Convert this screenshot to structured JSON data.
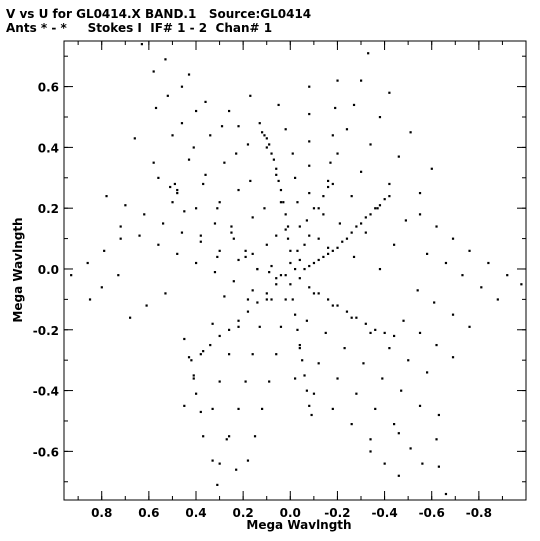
{
  "header": {
    "title_line1": "V vs U for GL0414.X BAND.1   Source:GL0414",
    "title_line2": "Ants * - *     Stokes I  IF# 1 - 2  Chan# 1"
  },
  "chart_data": {
    "type": "scatter",
    "title": "V vs U for GL0414.X BAND.1   Source:GL0414",
    "subtitle": "Ants * - *     Stokes I  IF# 1 - 2  Chan# 1",
    "xlabel": "Mega Wavlngth",
    "ylabel": "Mega Wavlngth",
    "xlim": [
      0.96,
      -1.0
    ],
    "ylim": [
      -0.76,
      0.75
    ],
    "x_reversed": true,
    "grid": false,
    "x_ticks": [
      0.8,
      0.6,
      0.4,
      0.2,
      0.0,
      -0.2,
      -0.4,
      -0.6,
      -0.8
    ],
    "x_tick_labels": [
      "0.8",
      "0.6",
      "0.4",
      "0.2",
      "0.0",
      "-0.2",
      "-0.4",
      "-0.6",
      "-0.8"
    ],
    "y_ticks": [
      0.6,
      0.4,
      0.2,
      0.0,
      -0.2,
      -0.4,
      -0.6
    ],
    "y_tick_labels": [
      "0.6",
      "0.4",
      "0.2",
      "0.0",
      "-0.2",
      "-0.4",
      "-0.6"
    ],
    "series": [
      {
        "marker_color": "#000000",
        "points": [
          [
            0.63,
            0.74
          ],
          [
            0.58,
            0.65
          ],
          [
            0.52,
            0.57
          ],
          [
            0.46,
            0.48
          ],
          [
            0.41,
            0.4
          ],
          [
            0.36,
            0.31
          ],
          [
            0.3,
            0.22
          ],
          [
            0.25,
            0.14
          ],
          [
            0.19,
            0.06
          ],
          [
            0.14,
            0.0
          ],
          [
            0.09,
            -0.01
          ],
          [
            0.04,
            -0.02
          ],
          [
            0.53,
            0.69
          ],
          [
            0.46,
            0.6
          ],
          [
            0.4,
            0.52
          ],
          [
            0.34,
            0.44
          ],
          [
            0.28,
            0.35
          ],
          [
            0.22,
            0.26
          ],
          [
            0.16,
            0.17
          ],
          [
            0.1,
            0.08
          ],
          [
            0.43,
            0.64
          ],
          [
            0.36,
            0.55
          ],
          [
            0.29,
            0.47
          ],
          [
            0.23,
            0.38
          ],
          [
            0.17,
            0.29
          ],
          [
            0.11,
            0.2
          ],
          [
            0.06,
            0.11
          ],
          [
            0.57,
            0.53
          ],
          [
            0.5,
            0.44
          ],
          [
            0.43,
            0.36
          ],
          [
            0.37,
            0.28
          ],
          [
            0.31,
            0.2
          ],
          [
            0.25,
            0.12
          ],
          [
            0.19,
            0.04
          ],
          [
            0.66,
            0.43
          ],
          [
            0.58,
            0.35
          ],
          [
            0.51,
            0.27
          ],
          [
            0.45,
            0.19
          ],
          [
            0.38,
            0.11
          ],
          [
            0.31,
            0.04
          ],
          [
            0.05,
            0.54
          ],
          [
            0.02,
            0.46
          ],
          [
            -0.01,
            0.38
          ],
          [
            -0.02,
            0.3
          ],
          [
            -0.03,
            0.22
          ],
          [
            -0.04,
            0.14
          ],
          [
            -0.03,
            0.06
          ],
          [
            -0.02,
            0.0
          ],
          [
            -0.08,
            0.6
          ],
          [
            -0.08,
            0.51
          ],
          [
            -0.08,
            0.42
          ],
          [
            -0.08,
            0.34
          ],
          [
            -0.08,
            0.25
          ],
          [
            -0.07,
            0.16
          ],
          [
            -0.06,
            0.08
          ],
          [
            -0.2,
            0.62
          ],
          [
            -0.19,
            0.53
          ],
          [
            -0.18,
            0.44
          ],
          [
            -0.17,
            0.35
          ],
          [
            -0.16,
            0.27
          ],
          [
            -0.14,
            0.18
          ],
          [
            -0.12,
            0.1
          ],
          [
            0.17,
            0.57
          ],
          [
            0.13,
            0.48
          ],
          [
            0.1,
            0.4
          ],
          [
            0.06,
            0.31
          ],
          [
            0.04,
            0.22
          ],
          [
            0.02,
            0.13
          ],
          [
            0.12,
            0.45
          ],
          [
            0.11,
            0.44
          ],
          [
            0.1,
            0.43
          ],
          [
            0.09,
            0.41
          ],
          [
            0.08,
            0.38
          ],
          [
            0.07,
            0.36
          ],
          [
            0.06,
            0.33
          ],
          [
            0.05,
            0.29
          ],
          [
            0.04,
            0.26
          ],
          [
            0.03,
            0.22
          ],
          [
            0.02,
            0.18
          ],
          [
            0.01,
            0.14
          ],
          [
            0.01,
            0.1
          ],
          [
            0.0,
            0.06
          ],
          [
            0.0,
            0.02
          ],
          [
            -0.33,
            0.71
          ],
          [
            -0.3,
            0.62
          ],
          [
            -0.27,
            0.54
          ],
          [
            -0.24,
            0.46
          ],
          [
            -0.2,
            0.38
          ],
          [
            -0.16,
            0.29
          ],
          [
            -0.12,
            0.2
          ],
          [
            -0.08,
            0.11
          ],
          [
            -0.04,
            0.03
          ],
          [
            -0.42,
            0.58
          ],
          [
            -0.38,
            0.5
          ],
          [
            -0.34,
            0.41
          ],
          [
            -0.3,
            0.32
          ],
          [
            -0.26,
            0.24
          ],
          [
            -0.21,
            0.15
          ],
          [
            -0.16,
            0.07
          ],
          [
            -0.51,
            0.45
          ],
          [
            -0.46,
            0.37
          ],
          [
            -0.42,
            0.28
          ],
          [
            -0.37,
            0.2
          ],
          [
            -0.32,
            0.12
          ],
          [
            -0.27,
            0.04
          ],
          [
            -0.6,
            0.33
          ],
          [
            -0.55,
            0.25
          ],
          [
            -0.49,
            0.16
          ],
          [
            -0.44,
            0.08
          ],
          [
            -0.38,
            0.0
          ],
          [
            -0.42,
            0.24
          ],
          [
            -0.4,
            0.23
          ],
          [
            -0.38,
            0.21
          ],
          [
            -0.36,
            0.2
          ],
          [
            -0.34,
            0.18
          ],
          [
            -0.32,
            0.17
          ],
          [
            -0.3,
            0.15
          ],
          [
            -0.28,
            0.14
          ],
          [
            -0.26,
            0.12
          ],
          [
            -0.24,
            0.1
          ],
          [
            -0.22,
            0.09
          ],
          [
            -0.2,
            0.07
          ],
          [
            -0.18,
            0.06
          ],
          [
            -0.16,
            0.05
          ],
          [
            -0.14,
            0.04
          ],
          [
            -0.12,
            0.03
          ],
          [
            -0.1,
            0.02
          ],
          [
            -0.08,
            0.01
          ],
          [
            -0.06,
            0.0
          ],
          [
            -0.55,
            0.18
          ],
          [
            -0.62,
            0.14
          ],
          [
            -0.69,
            0.1
          ],
          [
            -0.76,
            0.06
          ],
          [
            -0.84,
            0.02
          ],
          [
            -0.92,
            -0.02
          ],
          [
            -0.98,
            -0.05
          ],
          [
            -0.58,
            0.05
          ],
          [
            -0.66,
            0.02
          ],
          [
            -0.73,
            -0.02
          ],
          [
            -0.81,
            -0.06
          ],
          [
            -0.88,
            -0.1
          ],
          [
            -0.54,
            -0.07
          ],
          [
            -0.61,
            -0.11
          ],
          [
            -0.69,
            -0.15
          ],
          [
            -0.76,
            -0.19
          ],
          [
            -0.48,
            -0.17
          ],
          [
            -0.55,
            -0.21
          ],
          [
            -0.62,
            -0.25
          ],
          [
            -0.69,
            -0.29
          ],
          [
            -0.04,
            -0.03
          ],
          [
            -0.08,
            -0.06
          ],
          [
            -0.12,
            -0.08
          ],
          [
            -0.16,
            -0.1
          ],
          [
            -0.2,
            -0.12
          ],
          [
            -0.24,
            -0.14
          ],
          [
            -0.28,
            -0.16
          ],
          [
            -0.32,
            -0.18
          ],
          [
            -0.36,
            -0.2
          ],
          [
            -0.4,
            -0.21
          ],
          [
            -0.44,
            -0.22
          ],
          [
            -0.1,
            -0.08
          ],
          [
            -0.18,
            -0.12
          ],
          [
            -0.26,
            -0.16
          ],
          [
            -0.34,
            -0.21
          ],
          [
            -0.42,
            -0.26
          ],
          [
            -0.5,
            -0.3
          ],
          [
            -0.58,
            -0.34
          ],
          [
            -0.07,
            -0.17
          ],
          [
            -0.15,
            -0.21
          ],
          [
            -0.23,
            -0.26
          ],
          [
            -0.31,
            -0.31
          ],
          [
            -0.39,
            -0.36
          ],
          [
            -0.47,
            -0.4
          ],
          [
            -0.55,
            -0.45
          ],
          [
            -0.04,
            -0.26
          ],
          [
            -0.12,
            -0.31
          ],
          [
            -0.2,
            -0.36
          ],
          [
            -0.28,
            -0.41
          ],
          [
            -0.36,
            -0.46
          ],
          [
            -0.44,
            -0.51
          ],
          [
            -0.02,
            -0.36
          ],
          [
            -0.1,
            -0.41
          ],
          [
            -0.18,
            -0.46
          ],
          [
            -0.26,
            -0.51
          ],
          [
            -0.34,
            -0.56
          ],
          [
            -0.63,
            -0.48
          ],
          [
            -0.62,
            -0.56
          ],
          [
            -0.63,
            -0.65
          ],
          [
            -0.66,
            -0.74
          ],
          [
            -0.46,
            -0.54
          ],
          [
            -0.51,
            -0.59
          ],
          [
            -0.56,
            -0.64
          ],
          [
            -0.34,
            -0.6
          ],
          [
            -0.4,
            -0.64
          ],
          [
            -0.46,
            -0.68
          ],
          [
            0.0,
            -0.05
          ],
          [
            -0.01,
            -0.1
          ],
          [
            -0.02,
            -0.15
          ],
          [
            -0.03,
            -0.2
          ],
          [
            -0.04,
            -0.25
          ],
          [
            -0.05,
            -0.3
          ],
          [
            -0.06,
            -0.35
          ],
          [
            -0.07,
            -0.4
          ],
          [
            -0.08,
            -0.45
          ],
          [
            -0.09,
            -0.48
          ],
          [
            0.02,
            -0.1
          ],
          [
            0.04,
            -0.19
          ],
          [
            0.06,
            -0.28
          ],
          [
            0.09,
            -0.37
          ],
          [
            0.12,
            -0.46
          ],
          [
            0.15,
            -0.55
          ],
          [
            0.18,
            -0.63
          ],
          [
            0.1,
            -0.1
          ],
          [
            0.13,
            -0.19
          ],
          [
            0.16,
            -0.28
          ],
          [
            0.19,
            -0.37
          ],
          [
            0.22,
            -0.46
          ],
          [
            0.26,
            -0.55
          ],
          [
            0.3,
            -0.64
          ],
          [
            0.18,
            -0.1
          ],
          [
            0.22,
            -0.19
          ],
          [
            0.26,
            -0.28
          ],
          [
            0.3,
            -0.37
          ],
          [
            0.33,
            -0.46
          ],
          [
            0.37,
            -0.55
          ],
          [
            0.28,
            -0.09
          ],
          [
            0.33,
            -0.18
          ],
          [
            0.37,
            -0.27
          ],
          [
            0.41,
            -0.36
          ],
          [
            0.45,
            -0.45
          ],
          [
            0.27,
            -0.56
          ],
          [
            0.23,
            -0.66
          ],
          [
            0.31,
            -0.71
          ],
          [
            0.33,
            -0.63
          ],
          [
            0.02,
            -0.02
          ],
          [
            0.06,
            -0.05
          ],
          [
            0.1,
            -0.08
          ],
          [
            0.14,
            -0.11
          ],
          [
            0.18,
            -0.14
          ],
          [
            0.22,
            -0.17
          ],
          [
            0.26,
            -0.2
          ],
          [
            0.3,
            -0.22
          ],
          [
            0.34,
            -0.25
          ],
          [
            0.38,
            -0.28
          ],
          [
            0.42,
            -0.3
          ],
          [
            0.45,
            -0.23
          ],
          [
            0.43,
            -0.29
          ],
          [
            0.41,
            -0.35
          ],
          [
            0.4,
            -0.41
          ],
          [
            0.38,
            -0.47
          ],
          [
            0.08,
            0.01
          ],
          [
            0.16,
            0.05
          ],
          [
            0.24,
            0.1
          ],
          [
            0.32,
            0.15
          ],
          [
            0.4,
            0.2
          ],
          [
            0.48,
            0.25
          ],
          [
            0.56,
            0.3
          ],
          [
            0.06,
            -0.03
          ],
          [
            0.14,
            0.0
          ],
          [
            0.22,
            0.03
          ],
          [
            0.3,
            0.06
          ],
          [
            0.38,
            0.09
          ],
          [
            0.46,
            0.12
          ],
          [
            0.54,
            0.15
          ],
          [
            0.62,
            0.18
          ],
          [
            0.7,
            0.21
          ],
          [
            0.78,
            0.24
          ],
          [
            0.08,
            -0.1
          ],
          [
            0.16,
            -0.07
          ],
          [
            0.24,
            -0.04
          ],
          [
            0.32,
            -0.01
          ],
          [
            0.4,
            0.02
          ],
          [
            0.48,
            0.05
          ],
          [
            0.56,
            0.08
          ],
          [
            0.64,
            0.11
          ],
          [
            0.72,
            0.14
          ],
          [
            0.72,
            0.1
          ],
          [
            0.79,
            0.06
          ],
          [
            0.86,
            0.02
          ],
          [
            0.93,
            -0.02
          ],
          [
            0.73,
            -0.02
          ],
          [
            0.8,
            -0.06
          ],
          [
            0.85,
            -0.1
          ],
          [
            0.53,
            -0.08
          ],
          [
            0.61,
            -0.12
          ],
          [
            0.68,
            -0.16
          ],
          [
            -0.1,
            0.2
          ],
          [
            -0.14,
            0.24
          ],
          [
            -0.18,
            0.28
          ],
          [
            0.18,
            0.41
          ],
          [
            0.22,
            0.47
          ],
          [
            0.26,
            0.52
          ],
          [
            0.48,
            0.26
          ],
          [
            0.5,
            0.22
          ],
          [
            0.49,
            0.28
          ]
        ]
      }
    ]
  }
}
